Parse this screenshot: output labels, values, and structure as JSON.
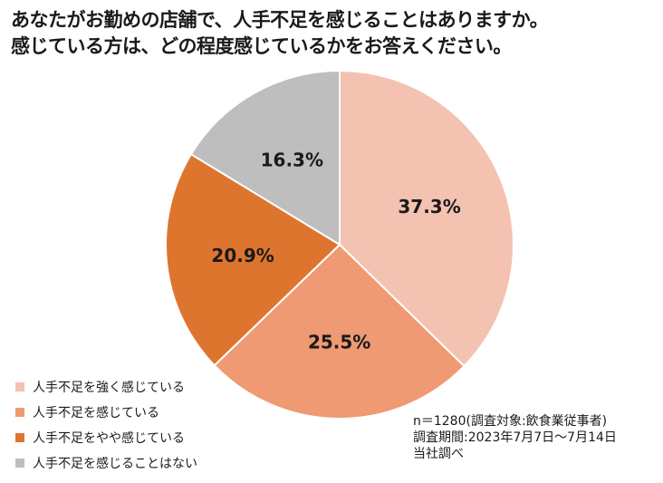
{
  "title": {
    "line1": "あなたがお勤めの店舗で、人手不足を感じることはありますか。",
    "line2": "感じている方は、どの程度感じているかをお答えください。"
  },
  "chart_data": {
    "type": "pie",
    "start": "12 o'clock, clockwise",
    "slices": [
      {
        "label": "人手不足を強く感じている",
        "value": 37.3,
        "display": "37.3%",
        "color": "#F4C2B1"
      },
      {
        "label": "人手不足を感じている",
        "value": 25.5,
        "display": "25.5%",
        "color": "#EF9A72"
      },
      {
        "label": "人手不足をやや感じている",
        "value": 20.9,
        "display": "20.9%",
        "color": "#DE752E"
      },
      {
        "label": "人手不足を感じることはない",
        "value": 16.3,
        "display": "16.3%",
        "color": "#BEBEBE"
      }
    ],
    "legend_position": "bottom-left"
  },
  "note": {
    "line1": "n＝1280(調査対象:飲食業従事者)",
    "line2": "調査期間:2023年7月7日～7月14日",
    "line3": "当社調べ"
  }
}
